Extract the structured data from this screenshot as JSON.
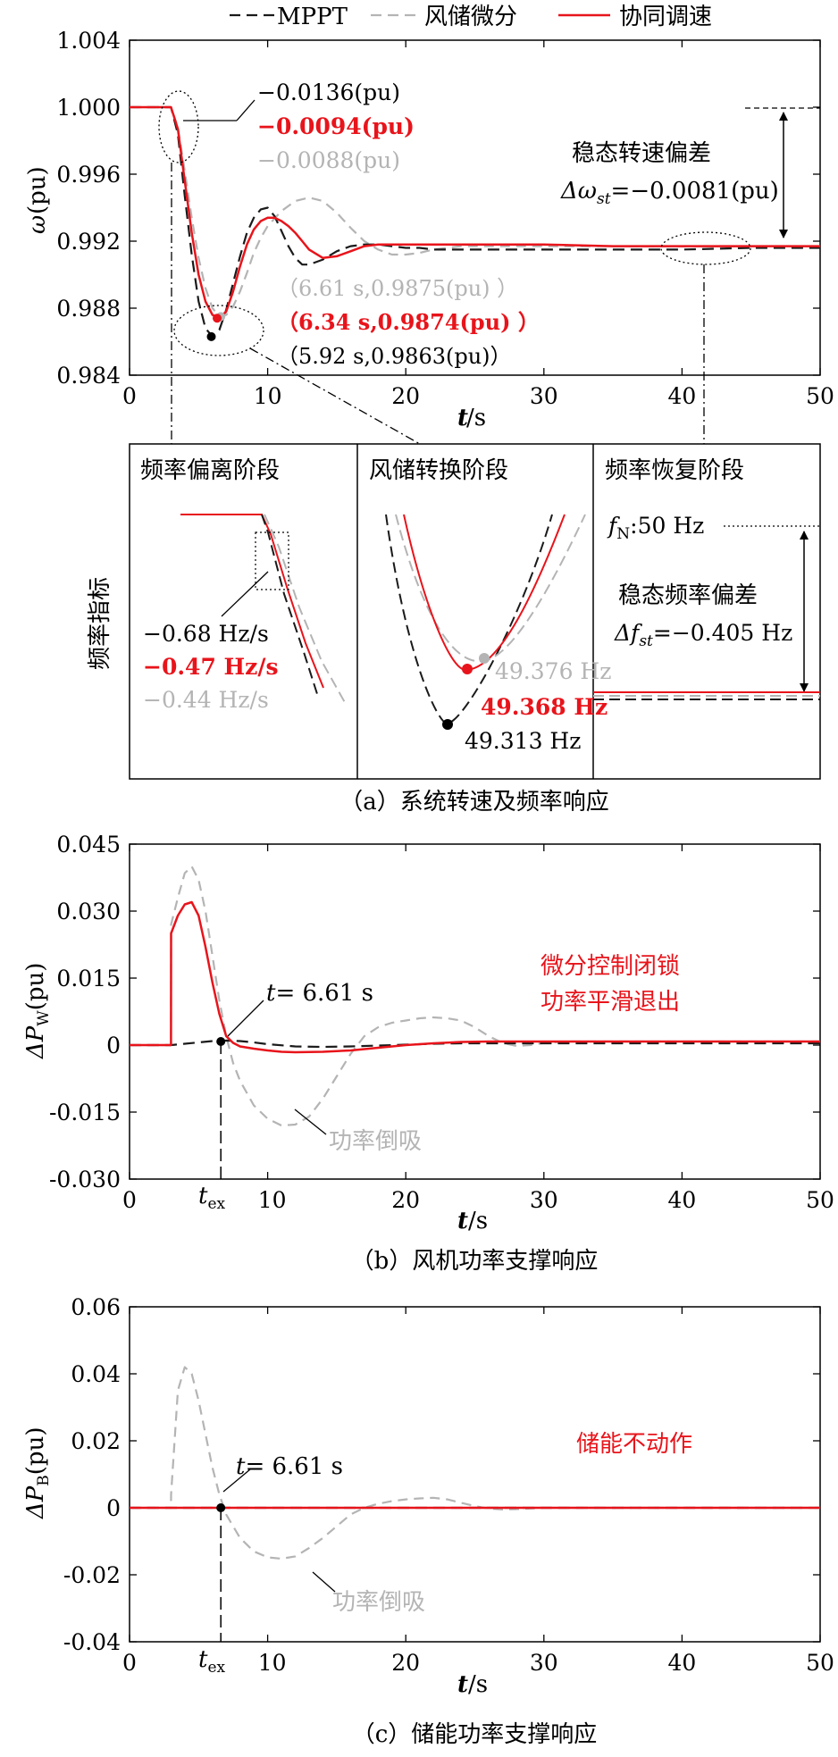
{
  "colors": {
    "mppt": "#1a1a1a",
    "wind_storage": "#b4b4b4",
    "coordinated": "#e8141b",
    "axis": "#000000"
  },
  "legend": [
    {
      "key": "mppt",
      "label": "MPPT"
    },
    {
      "key": "wind_storage",
      "label": "风储微分"
    },
    {
      "key": "coordinated",
      "label": "协同调速"
    }
  ],
  "chart_data": [
    {
      "id": "a",
      "type": "line",
      "caption": "（a）系统转速及频率响应",
      "xlabel_main": "t",
      "xlabel_unit": "/s",
      "ylabel_sym": "ω",
      "ylabel_unit": "(pu)",
      "xlim": [
        0,
        50
      ],
      "ylim": [
        0.984,
        1.004
      ],
      "xticks": [
        0,
        10,
        20,
        30,
        40,
        50
      ],
      "xtick_labels": [
        "0",
        "10",
        "20",
        "30",
        "40",
        "50"
      ],
      "yticks": [
        0.984,
        0.988,
        0.992,
        0.996,
        1.0,
        1.004
      ],
      "ytick_labels": [
        "0.984",
        "0.988",
        "0.992",
        "0.996",
        "1.000",
        "1.004"
      ],
      "series": [
        {
          "key": "mppt",
          "name": "MPPT",
          "x": [
            0,
            3,
            3.5,
            4,
            4.5,
            5,
            5.5,
            6,
            6.5,
            7,
            7.5,
            8,
            8.5,
            9,
            9.5,
            10,
            10.5,
            11,
            11.5,
            12,
            12.5,
            13,
            14,
            15,
            16,
            17,
            18,
            19,
            20,
            21,
            22,
            23,
            24,
            25,
            26,
            28,
            30,
            35,
            40,
            45,
            50
          ],
          "y": [
            1.0,
            1.0,
            0.9984,
            0.9947,
            0.9912,
            0.9884,
            0.9868,
            0.9863,
            0.9867,
            0.9879,
            0.9895,
            0.9911,
            0.9925,
            0.9934,
            0.9939,
            0.994,
            0.9935,
            0.9926,
            0.9917,
            0.991,
            0.9906,
            0.9906,
            0.9909,
            0.9914,
            0.9917,
            0.9918,
            0.9918,
            0.9917,
            0.9916,
            0.9916,
            0.9915,
            0.9915,
            0.9915,
            0.9915,
            0.9915,
            0.9915,
            0.9915,
            0.9915,
            0.9915,
            0.9916,
            0.9916
          ]
        },
        {
          "key": "wind_storage",
          "name": "风储微分",
          "x": [
            0,
            3,
            3.5,
            4,
            4.5,
            5,
            5.5,
            6,
            6.5,
            7,
            7.5,
            8,
            8.5,
            9,
            9.5,
            10,
            11,
            12,
            13,
            14,
            15,
            16,
            17,
            18,
            19,
            20,
            21,
            22,
            23,
            24,
            25,
            26,
            28,
            30,
            35,
            40,
            45,
            50
          ],
          "y": [
            1.0,
            1.0,
            0.9988,
            0.9962,
            0.9934,
            0.991,
            0.9892,
            0.988,
            0.9875,
            0.9876,
            0.9881,
            0.989,
            0.9901,
            0.9913,
            0.9922,
            0.9929,
            0.9938,
            0.9944,
            0.9946,
            0.9944,
            0.9937,
            0.9928,
            0.992,
            0.9915,
            0.9912,
            0.9912,
            0.9913,
            0.9915,
            0.9916,
            0.9917,
            0.9917,
            0.9917,
            0.9917,
            0.9917,
            0.9917,
            0.9917,
            0.9917,
            0.9917
          ]
        },
        {
          "key": "coordinated",
          "name": "协同调速",
          "x": [
            0,
            3,
            3.5,
            4,
            4.5,
            5,
            5.5,
            6,
            6.5,
            7,
            7.5,
            8,
            8.5,
            9,
            9.5,
            10,
            10.5,
            11,
            11.5,
            12,
            12.5,
            13,
            14,
            15,
            16,
            17,
            18,
            19,
            20,
            22,
            25,
            30,
            35,
            40,
            45,
            50
          ],
          "y": [
            1.0,
            1.0,
            0.9987,
            0.9956,
            0.9925,
            0.99,
            0.9884,
            0.9876,
            0.9874,
            0.9878,
            0.989,
            0.9905,
            0.9918,
            0.9927,
            0.9932,
            0.9934,
            0.9934,
            0.9932,
            0.9929,
            0.9925,
            0.992,
            0.9915,
            0.991,
            0.9911,
            0.9914,
            0.9917,
            0.9918,
            0.9918,
            0.9918,
            0.9918,
            0.9918,
            0.9918,
            0.9917,
            0.9917,
            0.9917,
            0.9917
          ]
        }
      ],
      "annotations": {
        "rocof_mppt": "−0.0136(pu)",
        "rocof_coord": "−0.0094(pu)",
        "rocof_ws": "−0.0088(pu)",
        "min_ws": "（6.61 s,0.9875(pu) ）",
        "min_coord": "（6.34 s,0.9874(pu) ）",
        "min_mppt": "（5.92 s,0.9863(pu)）",
        "steady_title": "稳态转速偏差",
        "steady_value": "Δω",
        "steady_sub": "st",
        "steady_num": "=−0.0081(pu)"
      },
      "inset": {
        "ylabel": "频率指标",
        "panels": [
          {
            "title": "频率偏离阶段",
            "labels": [
              "−0.68 Hz/s",
              "−0.47 Hz/s",
              "−0.44 Hz/s"
            ]
          },
          {
            "title": "风储转换阶段",
            "labels": [
              "49.376 Hz",
              "49.368 Hz",
              "49.313 Hz"
            ]
          },
          {
            "title": "频率恢复阶段",
            "fn_main": "f",
            "fn_sub": "N",
            "fn_value": ":50 Hz",
            "dev_title": "稳态频率偏差",
            "dev_main": "Δf",
            "dev_sub": "st",
            "dev_value": "=−0.405 Hz"
          }
        ]
      }
    },
    {
      "id": "b",
      "type": "line",
      "caption": "（b）风机功率支撑响应",
      "xlabel_main": "t",
      "xlabel_unit": "/s",
      "ylabel_sym": "ΔP",
      "ylabel_sub": "W",
      "ylabel_unit": "(pu)",
      "xlim": [
        0,
        50
      ],
      "ylim": [
        -0.03,
        0.045
      ],
      "xticks": [
        0,
        10,
        20,
        30,
        40,
        50
      ],
      "xtick_labels": [
        "0",
        "10",
        "20",
        "30",
        "40",
        "50"
      ],
      "yticks": [
        -0.03,
        -0.015,
        0,
        0.015,
        0.03,
        0.045
      ],
      "ytick_labels": [
        "-0.030",
        "-0.015",
        "0",
        "0.015",
        "0.030",
        "0.045"
      ],
      "series": [
        {
          "key": "mppt",
          "name": "MPPT",
          "x": [
            0,
            3,
            4,
            5,
            6,
            7,
            8,
            9,
            10,
            12,
            14,
            16,
            18,
            20,
            22,
            24,
            26,
            28,
            30,
            35,
            40,
            45,
            50
          ],
          "y": [
            0,
            0,
            0.0003,
            0.0006,
            0.0009,
            0.001,
            0.0009,
            0.0006,
            0.0002,
            -0.0003,
            -0.0004,
            -0.0003,
            -0.0001,
            0.0001,
            0.0003,
            0.0004,
            0.0004,
            0.0004,
            0.0004,
            0.0004,
            0.0004,
            0.0004,
            0.0004
          ]
        },
        {
          "key": "wind_storage",
          "name": "风储微分",
          "x": [
            0,
            3,
            3.01,
            3.5,
            4,
            4.5,
            5,
            5.5,
            6,
            6.5,
            7,
            7.5,
            8,
            9,
            10,
            11,
            12,
            13,
            14,
            15,
            16,
            17,
            18,
            19,
            20,
            21,
            22,
            23,
            24,
            25,
            26,
            27,
            28,
            29,
            30,
            32,
            35,
            40,
            45,
            50
          ],
          "y": [
            0,
            0,
            0.027,
            0.033,
            0.0385,
            0.04,
            0.037,
            0.03,
            0.02,
            0.01,
            0.002,
            -0.004,
            -0.008,
            -0.0135,
            -0.0165,
            -0.018,
            -0.0178,
            -0.016,
            -0.012,
            -0.007,
            -0.002,
            0.002,
            0.004,
            0.005,
            0.0055,
            0.006,
            0.0062,
            0.006,
            0.0055,
            0.004,
            0.002,
            0.0005,
            -0.0002,
            0,
            0.0005,
            0.0008,
            0.0008,
            0.0008,
            0.0008,
            0.0008
          ]
        },
        {
          "key": "coordinated",
          "name": "协同调速",
          "x": [
            0,
            3,
            3.01,
            3.5,
            4,
            4.5,
            5,
            5.5,
            6,
            6.5,
            7,
            7.5,
            8,
            9,
            10,
            11,
            12,
            14,
            16,
            18,
            20,
            22,
            24,
            26,
            28,
            30,
            35,
            40,
            45,
            50
          ],
          "y": [
            0,
            0,
            0.025,
            0.029,
            0.0315,
            0.032,
            0.029,
            0.022,
            0.014,
            0.007,
            0.002,
            0.0005,
            -0.0003,
            -0.0008,
            -0.0012,
            -0.0015,
            -0.0016,
            -0.0015,
            -0.0012,
            -0.0006,
            0,
            0.0004,
            0.0007,
            0.0008,
            0.0008,
            0.0008,
            0.0008,
            0.0008,
            0.0008,
            0.0008
          ]
        }
      ],
      "annotations": {
        "t_label": "t",
        "t_value": "= 6.61 s",
        "tex_main": "t",
        "tex_sub": "ex",
        "lock_line1": "微分控制闭锁",
        "lock_line2": "功率平滑退出",
        "reverse": "功率倒吸"
      }
    },
    {
      "id": "c",
      "type": "line",
      "caption": "（c）储能功率支撑响应",
      "xlabel_main": "t",
      "xlabel_unit": "/s",
      "ylabel_sym": "ΔP",
      "ylabel_sub": "B",
      "ylabel_unit": "(pu)",
      "xlim": [
        0,
        50
      ],
      "ylim": [
        -0.04,
        0.06
      ],
      "xticks": [
        0,
        10,
        20,
        30,
        40,
        50
      ],
      "xtick_labels": [
        "0",
        "10",
        "20",
        "30",
        "40",
        "50"
      ],
      "yticks": [
        -0.04,
        -0.02,
        0,
        0.02,
        0.04,
        0.06
      ],
      "ytick_labels": [
        "-0.04",
        "-0.02",
        "0",
        "0.02",
        "0.04",
        "0.06"
      ],
      "series": [
        {
          "key": "mppt",
          "name": "MPPT",
          "x": [
            0,
            50
          ],
          "y": [
            0,
            0
          ]
        },
        {
          "key": "wind_storage",
          "name": "风储微分",
          "x": [
            0,
            3,
            3.01,
            3.5,
            4,
            4.5,
            5,
            5.5,
            6,
            6.5,
            7,
            8,
            9,
            10,
            11,
            12,
            13,
            14,
            15,
            16,
            17,
            18,
            19,
            20,
            21,
            22,
            23,
            24,
            25,
            26,
            27,
            28,
            30,
            35,
            40,
            45,
            50
          ],
          "y": [
            0,
            0,
            0.004,
            0.035,
            0.042,
            0.04,
            0.032,
            0.022,
            0.012,
            0.004,
            -0.002,
            -0.009,
            -0.013,
            -0.0148,
            -0.0152,
            -0.0145,
            -0.012,
            -0.009,
            -0.0055,
            -0.002,
            0,
            0.0012,
            0.002,
            0.0025,
            0.0028,
            0.003,
            0.0025,
            0.0015,
            0.0005,
            -0.0002,
            -0.0005,
            -0.0004,
            0,
            0,
            0,
            0,
            0
          ]
        },
        {
          "key": "coordinated",
          "name": "协同调速",
          "x": [
            0,
            50
          ],
          "y": [
            0,
            0
          ]
        }
      ],
      "annotations": {
        "t_label": "t",
        "t_value": "= 6.61 s",
        "tex_main": "t",
        "tex_sub": "ex",
        "no_action": "储能不动作",
        "reverse": "功率倒吸"
      }
    }
  ]
}
